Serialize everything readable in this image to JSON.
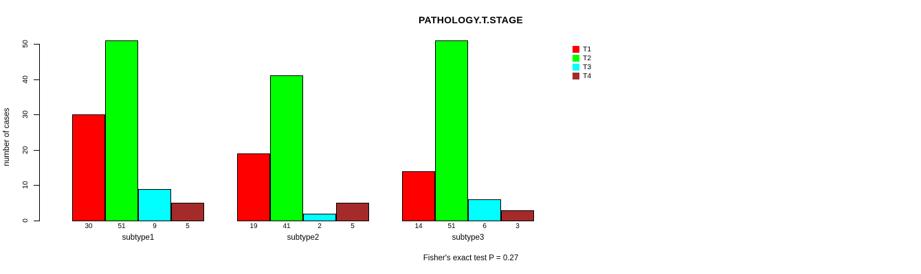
{
  "chart_data": {
    "type": "bar",
    "title": "PATHOLOGY.T.STAGE",
    "xlabel": "",
    "ylabel": "number of cases",
    "ylim": [
      0,
      50
    ],
    "yticks": [
      0,
      10,
      20,
      30,
      40,
      50
    ],
    "grid": false,
    "legend_position": "top-right",
    "bar_value_labels_shown": true,
    "categories": [
      "subtype1",
      "subtype2",
      "subtype3"
    ],
    "series": [
      {
        "name": "T1",
        "color": "#FF0000",
        "values": [
          30,
          19,
          14
        ]
      },
      {
        "name": "T2",
        "color": "#00FF00",
        "values": [
          51,
          41,
          51
        ]
      },
      {
        "name": "T3",
        "color": "#00FFFF",
        "values": [
          9,
          2,
          6
        ]
      },
      {
        "name": "T4",
        "color": "#A52A2A",
        "values": [
          5,
          5,
          3
        ]
      }
    ],
    "annotation": "Fisher's exact test P = 0.27"
  }
}
